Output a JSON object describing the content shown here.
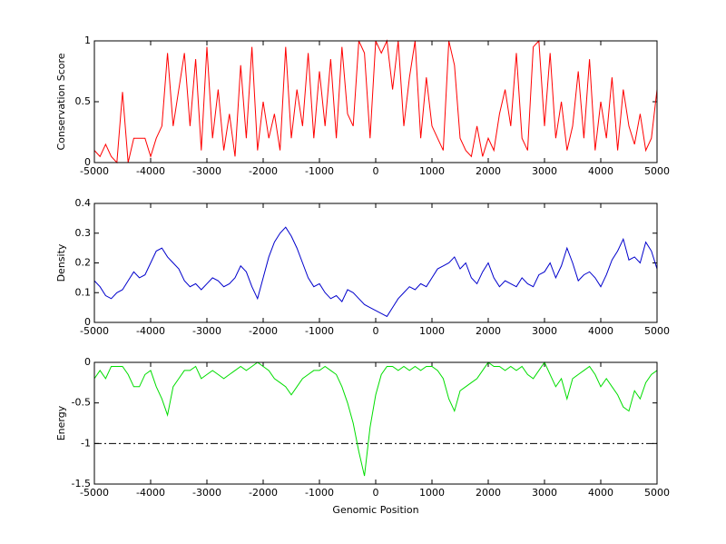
{
  "chart_data": [
    {
      "type": "line",
      "ylabel": "Conservation Score",
      "color": "#ff0000",
      "x": [
        -5000,
        -4900,
        -4800,
        -4700,
        -4600,
        -4500,
        -4400,
        -4300,
        -4200,
        -4100,
        -4000,
        -3900,
        -3800,
        -3700,
        -3600,
        -3500,
        -3400,
        -3300,
        -3200,
        -3100,
        -3000,
        -2900,
        -2800,
        -2700,
        -2600,
        -2500,
        -2400,
        -2300,
        -2200,
        -2100,
        -2000,
        -1900,
        -1800,
        -1700,
        -1600,
        -1500,
        -1400,
        -1300,
        -1200,
        -1100,
        -1000,
        -900,
        -800,
        -700,
        -600,
        -500,
        -400,
        -300,
        -200,
        -100,
        0,
        100,
        200,
        300,
        400,
        500,
        600,
        700,
        800,
        900,
        1000,
        1100,
        1200,
        1300,
        1400,
        1500,
        1600,
        1700,
        1800,
        1900,
        2000,
        2100,
        2200,
        2300,
        2400,
        2500,
        2600,
        2700,
        2800,
        2900,
        3000,
        3100,
        3200,
        3300,
        3400,
        3500,
        3600,
        3700,
        3800,
        3900,
        4000,
        4100,
        4200,
        4300,
        4400,
        4500,
        4600,
        4700,
        4800,
        4900,
        5000
      ],
      "values": [
        0.1,
        0.05,
        0.15,
        0.05,
        0.0,
        0.58,
        0,
        0.2,
        0.2,
        0.2,
        0.05,
        0.2,
        0.3,
        0.9,
        0.3,
        0.6,
        0.9,
        0.3,
        0.85,
        0.1,
        0.95,
        0.2,
        0.6,
        0.1,
        0.4,
        0.05,
        0.8,
        0.2,
        0.95,
        0.1,
        0.5,
        0.2,
        0.4,
        0.1,
        0.95,
        0.2,
        0.6,
        0.3,
        0.9,
        0.2,
        0.75,
        0.3,
        0.85,
        0.2,
        0.95,
        0.4,
        0.3,
        1,
        0.9,
        0.2,
        1,
        0.9,
        1,
        0.6,
        1,
        0.3,
        0.7,
        1,
        0.2,
        0.7,
        0.3,
        0.2,
        0.1,
        1,
        0.8,
        0.2,
        0.1,
        0.05,
        0.3,
        0.05,
        0.2,
        0.1,
        0.4,
        0.6,
        0.3,
        0.9,
        0.2,
        0.1,
        0.95,
        1,
        0.3,
        0.9,
        0.2,
        0.5,
        0.1,
        0.3,
        0.75,
        0.2,
        0.85,
        0.1,
        0.5,
        0.2,
        0.7,
        0.1,
        0.6,
        0.3,
        0.15,
        0.4,
        0.1,
        0.2,
        0.6
      ],
      "xlim": [
        -5000,
        5000
      ],
      "xticks": [
        -5000,
        -4000,
        -3000,
        -2000,
        -1000,
        0,
        1000,
        2000,
        3000,
        4000,
        5000
      ],
      "ylim": [
        0,
        1
      ],
      "yticks": [
        0,
        0.5,
        1
      ]
    },
    {
      "type": "line",
      "ylabel": "Density",
      "color": "#0000cc",
      "x": [
        -5000,
        -4900,
        -4800,
        -4700,
        -4600,
        -4500,
        -4400,
        -4300,
        -4200,
        -4100,
        -4000,
        -3900,
        -3800,
        -3700,
        -3600,
        -3500,
        -3400,
        -3300,
        -3200,
        -3100,
        -3000,
        -2900,
        -2800,
        -2700,
        -2600,
        -2500,
        -2400,
        -2300,
        -2200,
        -2100,
        -2000,
        -1900,
        -1800,
        -1700,
        -1600,
        -1500,
        -1400,
        -1300,
        -1200,
        -1100,
        -1000,
        -900,
        -800,
        -700,
        -600,
        -500,
        -400,
        -300,
        -200,
        -100,
        0,
        100,
        200,
        300,
        400,
        500,
        600,
        700,
        800,
        900,
        1000,
        1100,
        1200,
        1300,
        1400,
        1500,
        1600,
        1700,
        1800,
        1900,
        2000,
        2100,
        2200,
        2300,
        2400,
        2500,
        2600,
        2700,
        2800,
        2900,
        3000,
        3100,
        3200,
        3300,
        3400,
        3500,
        3600,
        3700,
        3800,
        3900,
        4000,
        4100,
        4200,
        4300,
        4400,
        4500,
        4600,
        4700,
        4800,
        4900,
        5000
      ],
      "values": [
        0.14,
        0.12,
        0.09,
        0.08,
        0.1,
        0.11,
        0.14,
        0.17,
        0.15,
        0.16,
        0.2,
        0.24,
        0.25,
        0.22,
        0.2,
        0.18,
        0.14,
        0.12,
        0.13,
        0.11,
        0.13,
        0.15,
        0.14,
        0.12,
        0.13,
        0.15,
        0.19,
        0.17,
        0.12,
        0.08,
        0.15,
        0.22,
        0.27,
        0.3,
        0.32,
        0.29,
        0.25,
        0.2,
        0.15,
        0.12,
        0.13,
        0.1,
        0.08,
        0.09,
        0.07,
        0.11,
        0.1,
        0.08,
        0.06,
        0.05,
        0.04,
        0.03,
        0.02,
        0.05,
        0.08,
        0.1,
        0.12,
        0.11,
        0.13,
        0.12,
        0.15,
        0.18,
        0.19,
        0.2,
        0.22,
        0.18,
        0.2,
        0.15,
        0.13,
        0.17,
        0.2,
        0.15,
        0.12,
        0.14,
        0.13,
        0.12,
        0.15,
        0.13,
        0.12,
        0.16,
        0.17,
        0.2,
        0.15,
        0.19,
        0.25,
        0.2,
        0.14,
        0.16,
        0.17,
        0.15,
        0.12,
        0.16,
        0.21,
        0.24,
        0.28,
        0.21,
        0.22,
        0.2,
        0.27,
        0.24,
        0.18
      ],
      "xlim": [
        -5000,
        5000
      ],
      "xticks": [
        -5000,
        -4000,
        -3000,
        -2000,
        -1000,
        0,
        1000,
        2000,
        3000,
        4000,
        5000
      ],
      "ylim": [
        0,
        0.4
      ],
      "yticks": [
        0,
        0.1,
        0.2,
        0.3,
        0.4
      ]
    },
    {
      "type": "line",
      "ylabel": "Energy",
      "xlabel": "Genomic Position",
      "color": "#00dd00",
      "x": [
        -5000,
        -4900,
        -4800,
        -4700,
        -4600,
        -4500,
        -4400,
        -4300,
        -4200,
        -4100,
        -4000,
        -3900,
        -3800,
        -3700,
        -3600,
        -3500,
        -3400,
        -3300,
        -3200,
        -3100,
        -3000,
        -2900,
        -2800,
        -2700,
        -2600,
        -2500,
        -2400,
        -2300,
        -2200,
        -2100,
        -2000,
        -1900,
        -1800,
        -1700,
        -1600,
        -1500,
        -1400,
        -1300,
        -1200,
        -1100,
        -1000,
        -900,
        -800,
        -700,
        -600,
        -500,
        -400,
        -300,
        -200,
        -100,
        0,
        100,
        200,
        300,
        400,
        500,
        600,
        700,
        800,
        900,
        1000,
        1100,
        1200,
        1300,
        1400,
        1500,
        1600,
        1700,
        1800,
        1900,
        2000,
        2100,
        2200,
        2300,
        2400,
        2500,
        2600,
        2700,
        2800,
        2900,
        3000,
        3100,
        3200,
        3300,
        3400,
        3500,
        3600,
        3700,
        3800,
        3900,
        4000,
        4100,
        4200,
        4300,
        4400,
        4500,
        4600,
        4700,
        4800,
        4900,
        5000
      ],
      "values": [
        -0.2,
        -0.1,
        -0.2,
        -0.05,
        -0.05,
        -0.05,
        -0.15,
        -0.3,
        -0.3,
        -0.15,
        -0.1,
        -0.3,
        -0.45,
        -0.65,
        -0.3,
        -0.2,
        -0.1,
        -0.1,
        -0.05,
        -0.2,
        -0.15,
        -0.1,
        -0.15,
        -0.2,
        -0.15,
        -0.1,
        -0.05,
        -0.1,
        -0.05,
        0,
        -0.05,
        -0.1,
        -0.2,
        -0.25,
        -0.3,
        -0.4,
        -0.3,
        -0.2,
        -0.15,
        -0.1,
        -0.1,
        -0.05,
        -0.1,
        -0.15,
        -0.3,
        -0.5,
        -0.75,
        -1.1,
        -1.4,
        -0.8,
        -0.4,
        -0.15,
        -0.05,
        -0.05,
        -0.1,
        -0.05,
        -0.1,
        -0.05,
        -0.1,
        -0.05,
        -0.05,
        -0.1,
        -0.2,
        -0.45,
        -0.6,
        -0.35,
        -0.3,
        -0.25,
        -0.2,
        -0.1,
        0,
        -0.05,
        -0.05,
        -0.1,
        -0.05,
        -0.1,
        -0.05,
        -0.15,
        -0.2,
        -0.1,
        0,
        -0.15,
        -0.3,
        -0.2,
        -0.45,
        -0.2,
        -0.15,
        -0.1,
        -0.05,
        -0.15,
        -0.3,
        -0.2,
        -0.3,
        -0.4,
        -0.55,
        -0.6,
        -0.35,
        -0.45,
        -0.25,
        -0.15,
        -0.1
      ],
      "hline": -1,
      "xlim": [
        -5000,
        5000
      ],
      "xticks": [
        -5000,
        -4000,
        -3000,
        -2000,
        -1000,
        0,
        1000,
        2000,
        3000,
        4000,
        5000
      ],
      "ylim": [
        -1.5,
        0
      ],
      "yticks": [
        -1.5,
        -1,
        -0.5,
        0
      ]
    }
  ]
}
